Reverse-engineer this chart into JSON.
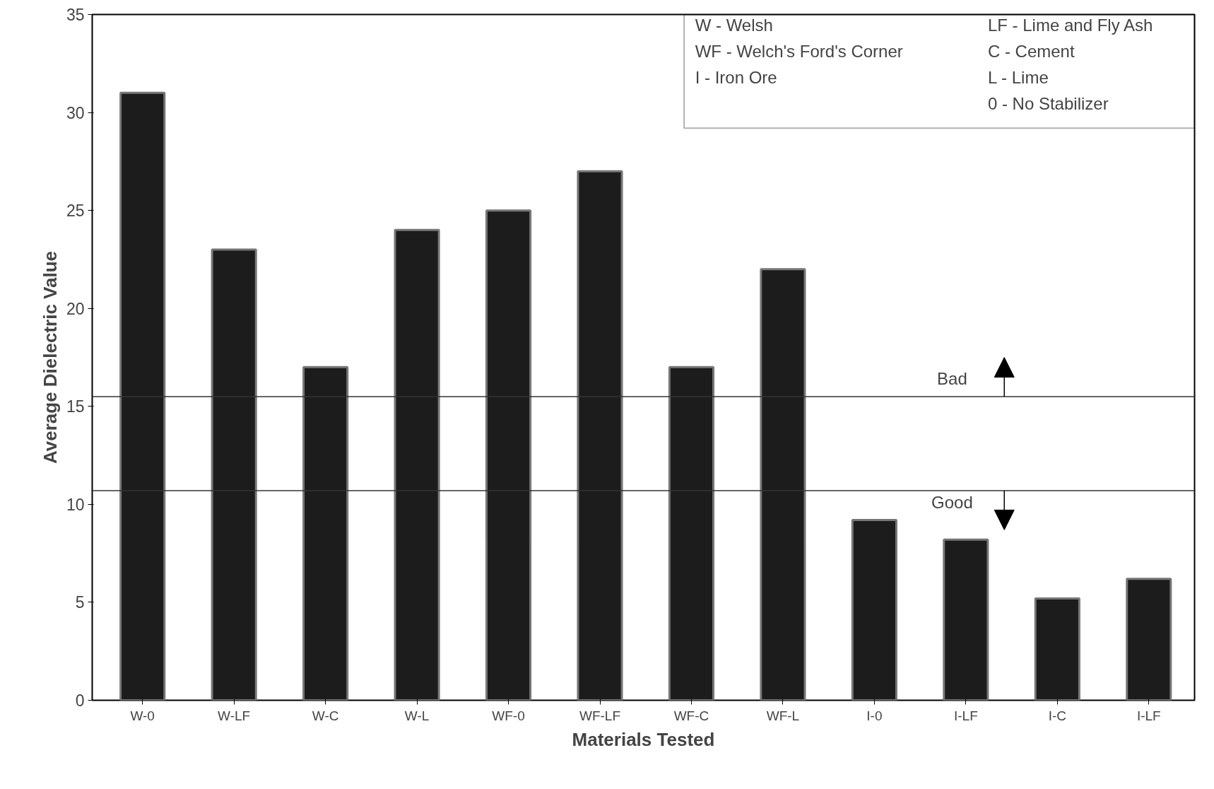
{
  "chart_data": {
    "type": "bar",
    "xlabel": "Materials Tested",
    "ylabel": "Average Dielectric Value",
    "categories": [
      "W-0",
      "W-LF",
      "W-C",
      "W-L",
      "WF-0",
      "WF-LF",
      "WF-C",
      "WF-L",
      "I-0",
      "I-LF",
      "I-C",
      "I-LF"
    ],
    "values": [
      31,
      23,
      17,
      24,
      25,
      27,
      17,
      22,
      9.2,
      8.2,
      5.2,
      6.2
    ],
    "color": "#1c1c1c",
    "ylim": [
      0,
      35
    ],
    "yticks": [
      0,
      5,
      10,
      15,
      20,
      25,
      30,
      35
    ],
    "grid": false,
    "ref_lines": [
      {
        "axis": "y",
        "value": 15.5,
        "label": "Bad",
        "color": "#333333"
      },
      {
        "axis": "y",
        "value": 10.7,
        "label": "Good",
        "color": "#333333"
      }
    ],
    "annotations": [
      "W - Welsh",
      "WF - Welch's Ford's Corner",
      "I - Iron Ore",
      "LF - Lime and Fly Ash",
      "C - Cement",
      "L - Lime",
      "0 - No Stabilizer"
    ]
  }
}
